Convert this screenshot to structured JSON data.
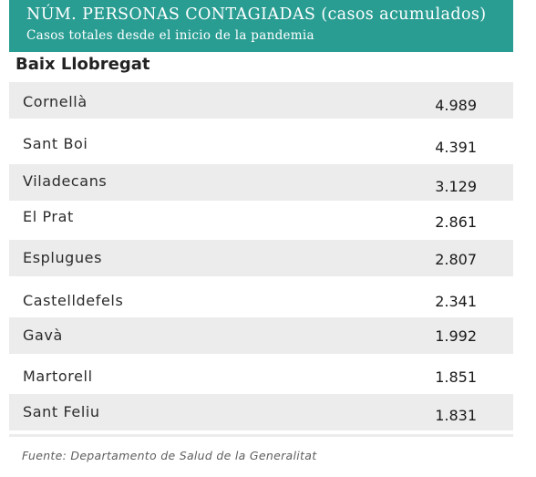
{
  "header": {
    "title": "NÚM. PERSONAS CONTAGIADAS (casos acumulados)",
    "subtitle": "Casos totales desde el inicio de la pandemia"
  },
  "region": "Baix Llobregat",
  "colors": {
    "header_bg": "#2a9d93",
    "row_shade": "#ececec"
  },
  "chart_data": {
    "type": "table",
    "title": "NÚM. PERSONAS CONTAGIADAS (casos acumulados)",
    "subtitle": "Casos totales desde el inicio de la pandemia",
    "categories": [
      "Cornellà",
      "Sant Boi",
      "Viladecans",
      "El Prat",
      "Esplugues",
      "Castelldefels",
      "Gavà",
      "Martorell",
      "Sant Feliu"
    ],
    "values": [
      4989,
      4391,
      3129,
      2861,
      2807,
      2341,
      1992,
      1851,
      1831
    ],
    "value_labels": [
      "4.989",
      "4.391",
      "3.129",
      "2.861",
      "2.807",
      "2.341",
      "1.992",
      "1.851",
      "1.831"
    ]
  },
  "source": "Fuente: Departamento de Salud de la Generalitat"
}
